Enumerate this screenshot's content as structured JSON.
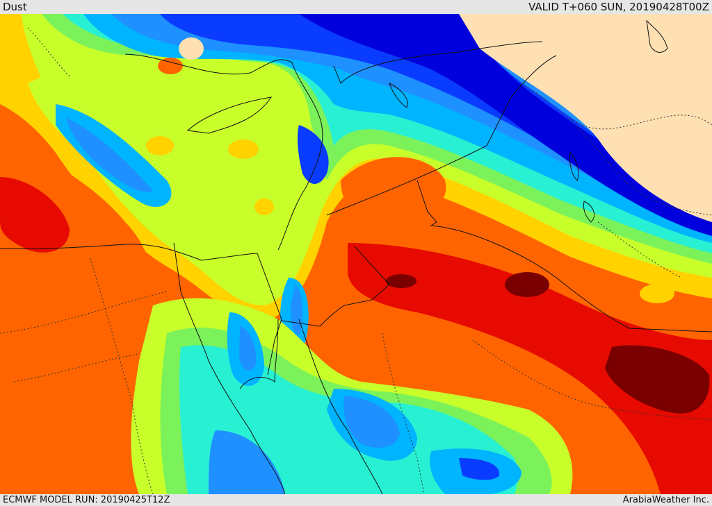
{
  "header": {
    "title": "Dust",
    "valid": "VALID T+060 SUN, 20190428T00Z"
  },
  "footer": {
    "model_run": "ECMWF MODEL RUN: 20190425T12Z",
    "credit": "ArabiaWeather Inc."
  },
  "palette": [
    "#ffe0b2",
    "#0000dc",
    "#0a3cff",
    "#1e90ff",
    "#00b4ff",
    "#28f0d2",
    "#7cf25a",
    "#c8ff2a",
    "#ffd200",
    "#ff9a00",
    "#ff6400",
    "#e60a00",
    "#7a0000"
  ]
}
